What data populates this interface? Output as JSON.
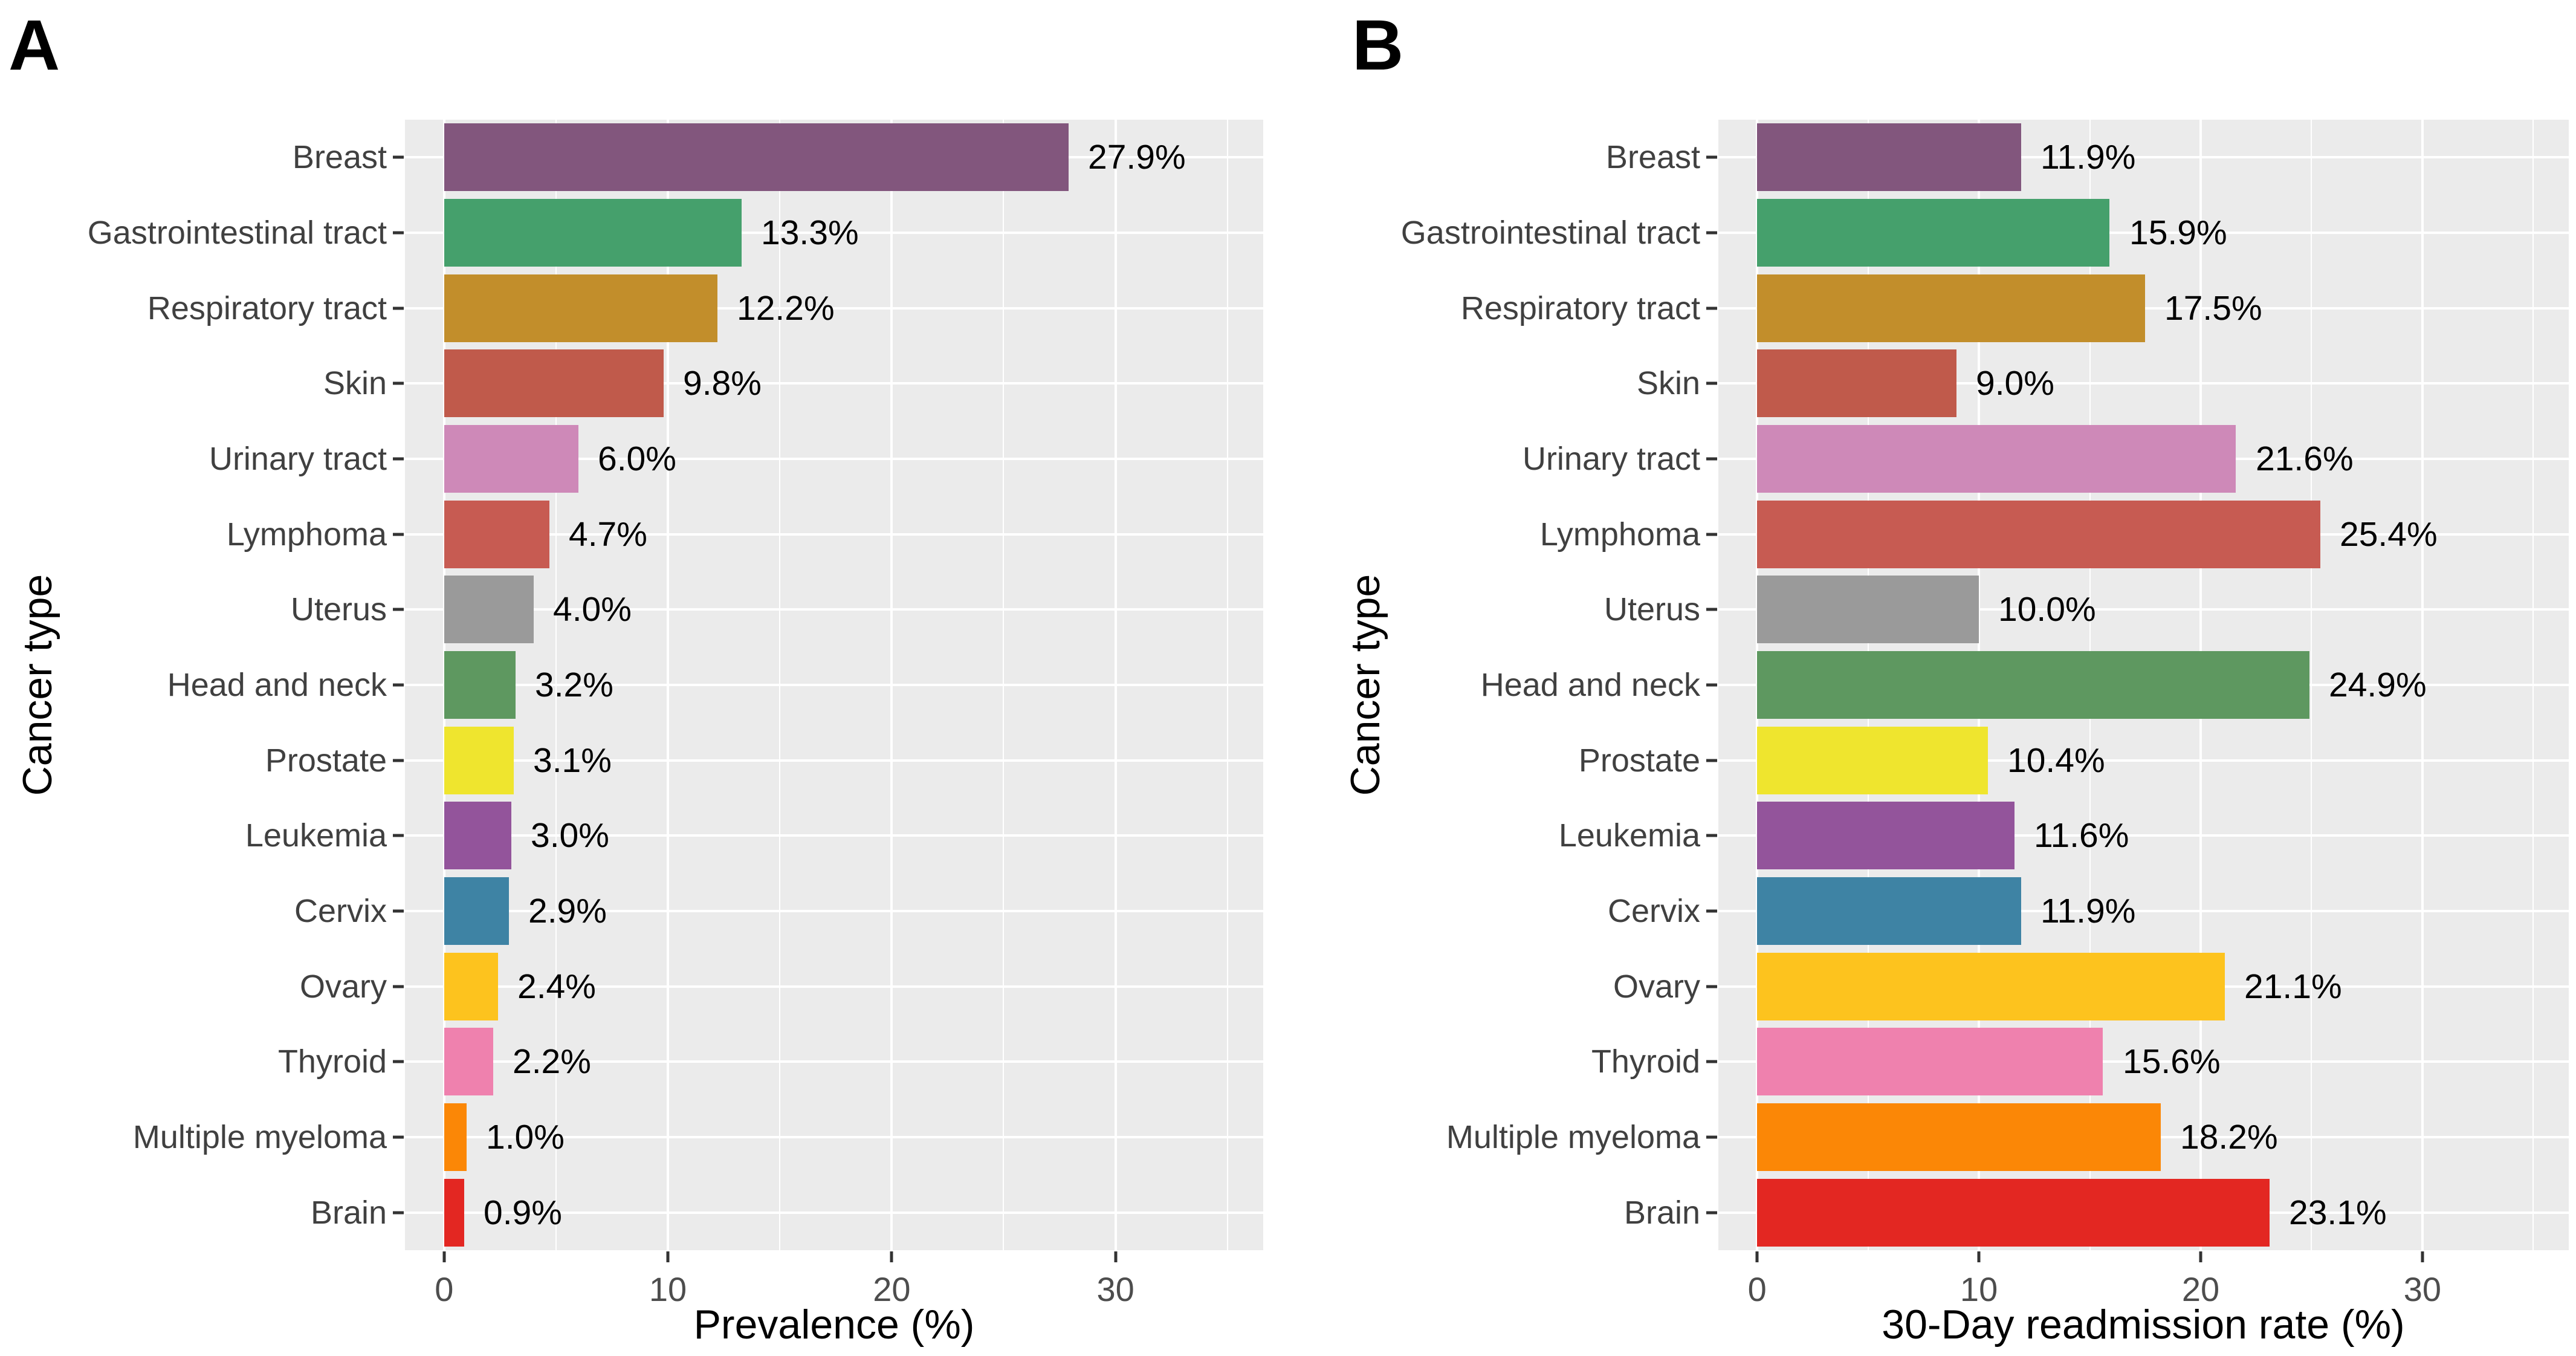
{
  "figure": {
    "background": "#FFFFFF",
    "panel_background": "#EBEBEB",
    "grid_color": "#FFFFFF",
    "axis_text_color": "#4D4D4D",
    "category_text_color": "#404040",
    "value_text_color": "#000000",
    "tick_mark_color": "#333333"
  },
  "chart_data": [
    {
      "type": "bar",
      "orientation": "horizontal",
      "panel_label": "A",
      "xlabel": "Prevalence (%)",
      "ylabel": "Cancer type",
      "categories": [
        "Breast",
        "Gastrointestinal tract",
        "Respiratory tract",
        "Skin",
        "Urinary tract",
        "Lymphoma",
        "Uterus",
        "Head and neck",
        "Prostate",
        "Leukemia",
        "Cervix",
        "Ovary",
        "Thyroid",
        "Multiple myeloma",
        "Brain"
      ],
      "values": [
        27.9,
        13.3,
        12.2,
        9.8,
        6.0,
        4.7,
        4.0,
        3.2,
        3.1,
        3.0,
        2.9,
        2.4,
        2.2,
        1.0,
        0.9
      ],
      "value_labels": [
        "27.9%",
        "13.3%",
        "12.2%",
        "9.8%",
        "6.0%",
        "4.7%",
        "4.0%",
        "3.2%",
        "3.1%",
        "3.0%",
        "2.9%",
        "2.4%",
        "2.2%",
        "1.0%",
        "0.9%"
      ],
      "bar_colors": [
        "#82567D",
        "#45A06C",
        "#C28E2B",
        "#C05A4B",
        "#CE89B8",
        "#C75B52",
        "#9A9A9A",
        "#5E9860",
        "#EFE52E",
        "#93549B",
        "#3E83A4",
        "#FDC31E",
        "#EF81AE",
        "#FB8706",
        "#E32722"
      ],
      "x_ticks": [
        0,
        10,
        20,
        30
      ],
      "x_minor_ticks": [
        5,
        15,
        25,
        35
      ],
      "xlim": [
        -1.75,
        36.6
      ],
      "grid": true,
      "legend": false
    },
    {
      "type": "bar",
      "orientation": "horizontal",
      "panel_label": "B",
      "xlabel": "30-Day readmission rate (%)",
      "ylabel": "Cancer type",
      "categories": [
        "Breast",
        "Gastrointestinal tract",
        "Respiratory tract",
        "Skin",
        "Urinary tract",
        "Lymphoma",
        "Uterus",
        "Head and neck",
        "Prostate",
        "Leukemia",
        "Cervix",
        "Ovary",
        "Thyroid",
        "Multiple myeloma",
        "Brain"
      ],
      "values": [
        11.9,
        15.9,
        17.5,
        9.0,
        21.6,
        25.4,
        10.0,
        24.9,
        10.4,
        11.6,
        11.9,
        21.1,
        15.6,
        18.2,
        23.1
      ],
      "value_labels": [
        "11.9%",
        "15.9%",
        "17.5%",
        "9.0%",
        "21.6%",
        "25.4%",
        "10.0%",
        "24.9%",
        "10.4%",
        "11.6%",
        "11.9%",
        "21.1%",
        "15.6%",
        "18.2%",
        "23.1%"
      ],
      "bar_colors": [
        "#82567D",
        "#45A06C",
        "#C28E2B",
        "#C05A4B",
        "#CE89B8",
        "#C75B52",
        "#9A9A9A",
        "#5E9860",
        "#EFE52E",
        "#93549B",
        "#3E83A4",
        "#FDC31E",
        "#EF81AE",
        "#FB8706",
        "#E32722"
      ],
      "x_ticks": [
        0,
        10,
        20,
        30
      ],
      "x_minor_ticks": [
        5,
        15,
        25,
        35
      ],
      "xlim": [
        -1.75,
        36.6
      ],
      "grid": true,
      "legend": false
    }
  ]
}
